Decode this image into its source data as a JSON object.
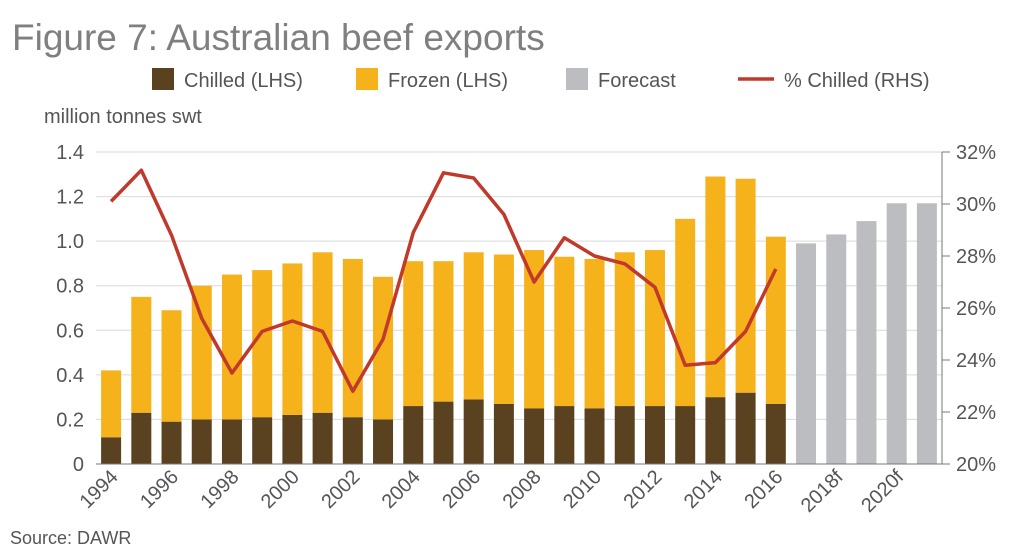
{
  "title": "Figure 7: Australian beef exports",
  "source": "Source: DAWR",
  "chart_data": {
    "type": "bar",
    "stacked": true,
    "ylabel": "million tonnes swt",
    "ylim": [
      0,
      1.4
    ],
    "yticks": [
      "0",
      "0.2",
      "0.4",
      "0.6",
      "0.8",
      "1.0",
      "1.2",
      "1.4"
    ],
    "y2lim": [
      20,
      32
    ],
    "y2ticks": [
      "20%",
      "22%",
      "24%",
      "26%",
      "28%",
      "30%",
      "32%"
    ],
    "categories": [
      "1994",
      "1995",
      "1996",
      "1997",
      "1998",
      "1999",
      "2000",
      "2001",
      "2002",
      "2003",
      "2004",
      "2005",
      "2006",
      "2007",
      "2008",
      "2009",
      "2010",
      "2011",
      "2012",
      "2013",
      "2014",
      "2015",
      "2016",
      "2017f",
      "2018f",
      "2019f",
      "2020f",
      "2021f"
    ],
    "x_tick_labels": [
      "1994",
      "1996",
      "1998",
      "2000",
      "2002",
      "2004",
      "2006",
      "2008",
      "2010",
      "2012",
      "2014",
      "2016",
      "2018f",
      "2020f"
    ],
    "legend": {
      "position": "top",
      "entries": [
        {
          "label": "Chilled (LHS)",
          "color": "#5a4220",
          "kind": "box"
        },
        {
          "label": "Frozen (LHS)",
          "color": "#f5b21b",
          "kind": "box"
        },
        {
          "label": "Forecast",
          "color": "#bcbdc0",
          "kind": "box"
        },
        {
          "label": "% Chilled (RHS)",
          "color": "#c0392b",
          "kind": "line"
        }
      ]
    },
    "series": [
      {
        "name": "Chilled (LHS)",
        "color": "#5a4220",
        "values": [
          0.12,
          0.23,
          0.19,
          0.2,
          0.2,
          0.21,
          0.22,
          0.23,
          0.21,
          0.2,
          0.26,
          0.28,
          0.29,
          0.27,
          0.25,
          0.26,
          0.25,
          0.26,
          0.26,
          0.26,
          0.3,
          0.32,
          0.27,
          null,
          null,
          null,
          null,
          null
        ]
      },
      {
        "name": "Frozen (LHS)",
        "color": "#f5b21b",
        "values": [
          0.3,
          0.52,
          0.5,
          0.6,
          0.65,
          0.66,
          0.68,
          0.72,
          0.71,
          0.64,
          0.65,
          0.63,
          0.66,
          0.67,
          0.71,
          0.67,
          0.67,
          0.69,
          0.7,
          0.84,
          0.99,
          0.96,
          0.75,
          null,
          null,
          null,
          null,
          null
        ]
      },
      {
        "name": "Forecast",
        "color": "#bcbdc0",
        "values": [
          null,
          null,
          null,
          null,
          null,
          null,
          null,
          null,
          null,
          null,
          null,
          null,
          null,
          null,
          null,
          null,
          null,
          null,
          null,
          null,
          null,
          null,
          null,
          0.99,
          1.03,
          1.09,
          1.17,
          1.17
        ]
      },
      {
        "name": "% Chilled (RHS)",
        "color": "#c0392b",
        "axis": "right",
        "values": [
          30.1,
          31.3,
          28.8,
          25.6,
          23.5,
          25.1,
          25.5,
          25.1,
          22.8,
          24.8,
          28.9,
          31.2,
          31.0,
          29.6,
          27.0,
          28.7,
          28.0,
          27.7,
          26.8,
          23.8,
          23.9,
          25.1,
          27.5,
          null,
          null,
          null,
          null,
          null
        ]
      }
    ]
  }
}
